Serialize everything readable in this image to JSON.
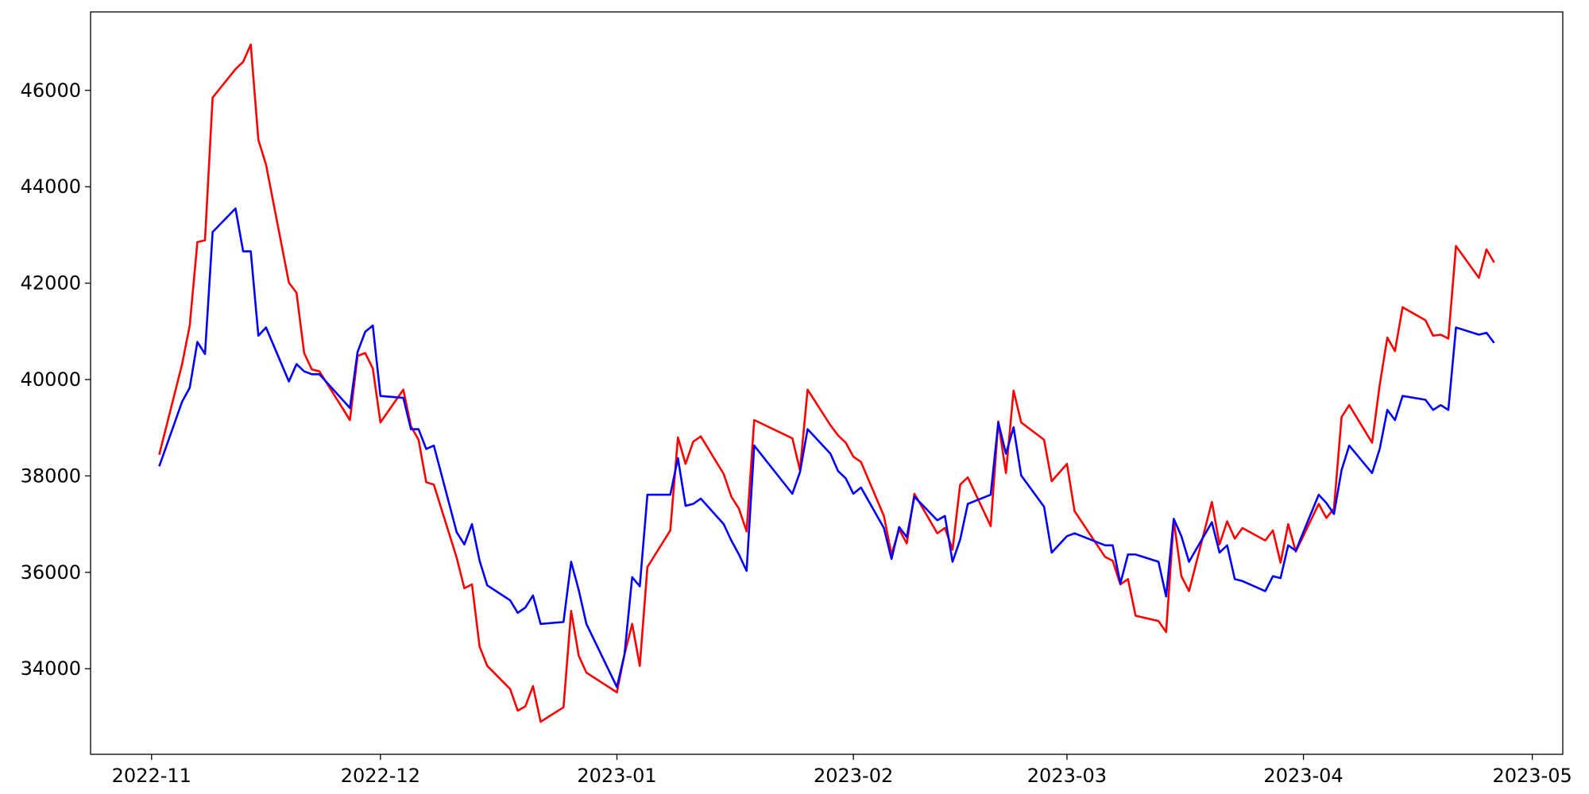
{
  "chart_data": {
    "type": "line",
    "x": [
      "2022-11-02",
      "2022-11-05",
      "2022-11-06",
      "2022-11-07",
      "2022-11-08",
      "2022-11-09",
      "2022-11-12",
      "2022-11-13",
      "2022-11-14",
      "2022-11-15",
      "2022-11-16",
      "2022-11-19",
      "2022-11-20",
      "2022-11-21",
      "2022-11-22",
      "2022-11-23",
      "2022-11-27",
      "2022-11-28",
      "2022-11-29",
      "2022-11-30",
      "2022-12-01",
      "2022-12-04",
      "2022-12-05",
      "2022-12-06",
      "2022-12-07",
      "2022-12-08",
      "2022-12-11",
      "2022-12-12",
      "2022-12-13",
      "2022-12-14",
      "2022-12-15",
      "2022-12-18",
      "2022-12-19",
      "2022-12-20",
      "2022-12-21",
      "2022-12-22",
      "2022-12-25",
      "2022-12-26",
      "2022-12-27",
      "2022-12-28",
      "2023-01-01",
      "2023-01-02",
      "2023-01-03",
      "2023-01-04",
      "2023-01-05",
      "2023-01-08",
      "2023-01-09",
      "2023-01-10",
      "2023-01-11",
      "2023-01-12",
      "2023-01-15",
      "2023-01-16",
      "2023-01-17",
      "2023-01-18",
      "2023-01-19",
      "2023-01-24",
      "2023-01-25",
      "2023-01-26",
      "2023-01-29",
      "2023-01-30",
      "2023-01-31",
      "2023-02-01",
      "2023-02-02",
      "2023-02-05",
      "2023-02-06",
      "2023-02-07",
      "2023-02-08",
      "2023-02-09",
      "2023-02-12",
      "2023-02-13",
      "2023-02-14",
      "2023-02-15",
      "2023-02-16",
      "2023-02-19",
      "2023-02-20",
      "2023-02-21",
      "2023-02-22",
      "2023-02-23",
      "2023-02-26",
      "2023-02-27",
      "2023-03-01",
      "2023-03-02",
      "2023-03-06",
      "2023-03-07",
      "2023-03-08",
      "2023-03-09",
      "2023-03-10",
      "2023-03-13",
      "2023-03-14",
      "2023-03-15",
      "2023-03-16",
      "2023-03-17",
      "2023-03-20",
      "2023-03-21",
      "2023-03-22",
      "2023-03-23",
      "2023-03-24",
      "2023-03-27",
      "2023-03-28",
      "2023-03-29",
      "2023-03-30",
      "2023-03-31",
      "2023-04-03",
      "2023-04-04",
      "2023-04-05",
      "2023-04-06",
      "2023-04-07",
      "2023-04-10",
      "2023-04-11",
      "2023-04-12",
      "2023-04-13",
      "2023-04-14",
      "2023-04-17",
      "2023-04-18",
      "2023-04-19",
      "2023-04-20",
      "2023-04-21",
      "2023-04-24",
      "2023-04-25",
      "2023-04-26"
    ],
    "series": [
      {
        "color": "#ff0000",
        "values": [
          38440,
          40320,
          41120,
          42850,
          42890,
          45850,
          46440,
          46590,
          46950,
          44970,
          44460,
          42010,
          41800,
          40550,
          40210,
          40170,
          39160,
          40490,
          40550,
          40230,
          39110,
          39790,
          39030,
          38750,
          37870,
          37820,
          36300,
          35670,
          35750,
          34460,
          34060,
          33580,
          33130,
          33220,
          33640,
          32900,
          33200,
          35200,
          34270,
          33920,
          33510,
          34300,
          34930,
          34060,
          36110,
          36870,
          38800,
          38250,
          38710,
          38820,
          38040,
          37570,
          37320,
          36850,
          39160,
          38780,
          38120,
          39790,
          39050,
          38840,
          38690,
          38400,
          38290,
          37170,
          36370,
          36890,
          36600,
          37630,
          36810,
          36920,
          36470,
          37820,
          37970,
          36960,
          39130,
          38060,
          39770,
          39110,
          38750,
          37890,
          38250,
          37270,
          36320,
          36240,
          35750,
          35860,
          35100,
          34990,
          34760,
          37080,
          35920,
          35610,
          37460,
          36580,
          37060,
          36700,
          36920,
          36660,
          36870,
          36200,
          37000,
          36430,
          37420,
          37130,
          37320,
          39220,
          39470,
          38690,
          39890,
          40870,
          40590,
          41500,
          41230,
          40910,
          40930,
          40850,
          42770,
          42110,
          42700,
          42430
        ]
      },
      {
        "color": "#0000ff",
        "values": [
          38200,
          39540,
          39830,
          40780,
          40530,
          43060,
          43550,
          42660,
          42660,
          40910,
          41080,
          39960,
          40320,
          40170,
          40110,
          40110,
          39410,
          40570,
          40990,
          41120,
          39660,
          39620,
          38970,
          38970,
          38560,
          38630,
          36830,
          36580,
          37000,
          36240,
          35730,
          35420,
          35160,
          35270,
          35520,
          34930,
          34970,
          36220,
          35630,
          34930,
          33620,
          34300,
          35900,
          35710,
          37610,
          37610,
          38370,
          37380,
          37420,
          37530,
          37000,
          36660,
          36370,
          36030,
          38630,
          37630,
          38080,
          38970,
          38460,
          38100,
          37950,
          37630,
          37760,
          36920,
          36280,
          36940,
          36730,
          37570,
          37080,
          37170,
          36220,
          36680,
          37420,
          37610,
          39110,
          38460,
          39010,
          38010,
          37360,
          36410,
          36750,
          36810,
          36560,
          36560,
          35770,
          36370,
          36370,
          36220,
          35500,
          37110,
          36750,
          36220,
          37040,
          36410,
          36560,
          35860,
          35820,
          35610,
          35920,
          35880,
          36560,
          36450,
          37610,
          37440,
          37210,
          38120,
          38630,
          38060,
          38560,
          39370,
          39160,
          39660,
          39580,
          39370,
          39470,
          39370,
          41080,
          40930,
          40970,
          40760
        ]
      }
    ],
    "xlim": [
      "2022-10-24",
      "2023-05-05"
    ],
    "xticks": [
      {
        "value": "2022-11-01",
        "label": "2022-11"
      },
      {
        "value": "2022-12-01",
        "label": "2022-12"
      },
      {
        "value": "2023-01-01",
        "label": "2023-01"
      },
      {
        "value": "2023-02-01",
        "label": "2023-02"
      },
      {
        "value": "2023-03-01",
        "label": "2023-03"
      },
      {
        "value": "2023-04-01",
        "label": "2023-04"
      },
      {
        "value": "2023-05-01",
        "label": "2023-05"
      }
    ],
    "ylim": [
      32225,
      47627
    ],
    "yticks": [
      34000,
      36000,
      38000,
      40000,
      42000,
      44000,
      46000
    ]
  }
}
